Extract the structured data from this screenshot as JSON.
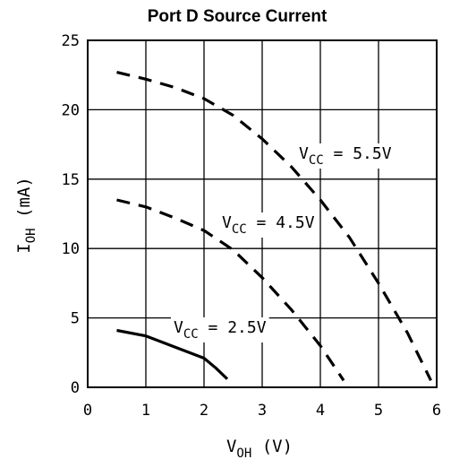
{
  "chart_data": {
    "type": "line",
    "title": "Port D Source Current",
    "xlabel": {
      "main": "V",
      "sub": "OH",
      "unit": " (V)"
    },
    "ylabel": {
      "main": "I",
      "sub": "OH",
      "unit": " (mA)"
    },
    "xlim": [
      0,
      6
    ],
    "ylim": [
      0,
      25
    ],
    "x_ticks": [
      "0",
      "1",
      "2",
      "3",
      "4",
      "5",
      "6"
    ],
    "y_ticks": [
      "0",
      "5",
      "10",
      "15",
      "20",
      "25"
    ],
    "grid": true,
    "series": [
      {
        "name": "V_CC = 5.5V",
        "style": "dashed",
        "points": [
          [
            0.5,
            22.7
          ],
          [
            1.0,
            22.2
          ],
          [
            1.5,
            21.6
          ],
          [
            2.0,
            20.8
          ],
          [
            2.5,
            19.6
          ],
          [
            3.0,
            17.9
          ],
          [
            3.5,
            15.9
          ],
          [
            4.0,
            13.5
          ],
          [
            4.5,
            10.8
          ],
          [
            5.0,
            7.5
          ],
          [
            5.5,
            3.9
          ],
          [
            5.9,
            0.5
          ]
        ]
      },
      {
        "name": "V_CC = 4.5V",
        "style": "dashed",
        "points": [
          [
            0.5,
            13.5
          ],
          [
            1.0,
            13.0
          ],
          [
            1.5,
            12.2
          ],
          [
            2.0,
            11.3
          ],
          [
            2.5,
            9.9
          ],
          [
            3.0,
            7.9
          ],
          [
            3.5,
            5.6
          ],
          [
            4.0,
            3.0
          ],
          [
            4.4,
            0.5
          ]
        ]
      },
      {
        "name": "V_CC = 2.5V",
        "style": "solid",
        "points": [
          [
            0.5,
            4.1
          ],
          [
            1.0,
            3.7
          ],
          [
            1.5,
            2.9
          ],
          [
            2.0,
            2.1
          ],
          [
            2.2,
            1.4
          ],
          [
            2.4,
            0.6
          ]
        ]
      }
    ],
    "annotations": [
      {
        "text_main": "V",
        "text_sub": "CC",
        "text_rest": " = 5.5V",
        "series": 0
      },
      {
        "text_main": "V",
        "text_sub": "CC",
        "text_rest": " = 4.5V",
        "series": 1
      },
      {
        "text_main": "V",
        "text_sub": "CC",
        "text_rest": " = 2.5V",
        "series": 2
      }
    ]
  }
}
